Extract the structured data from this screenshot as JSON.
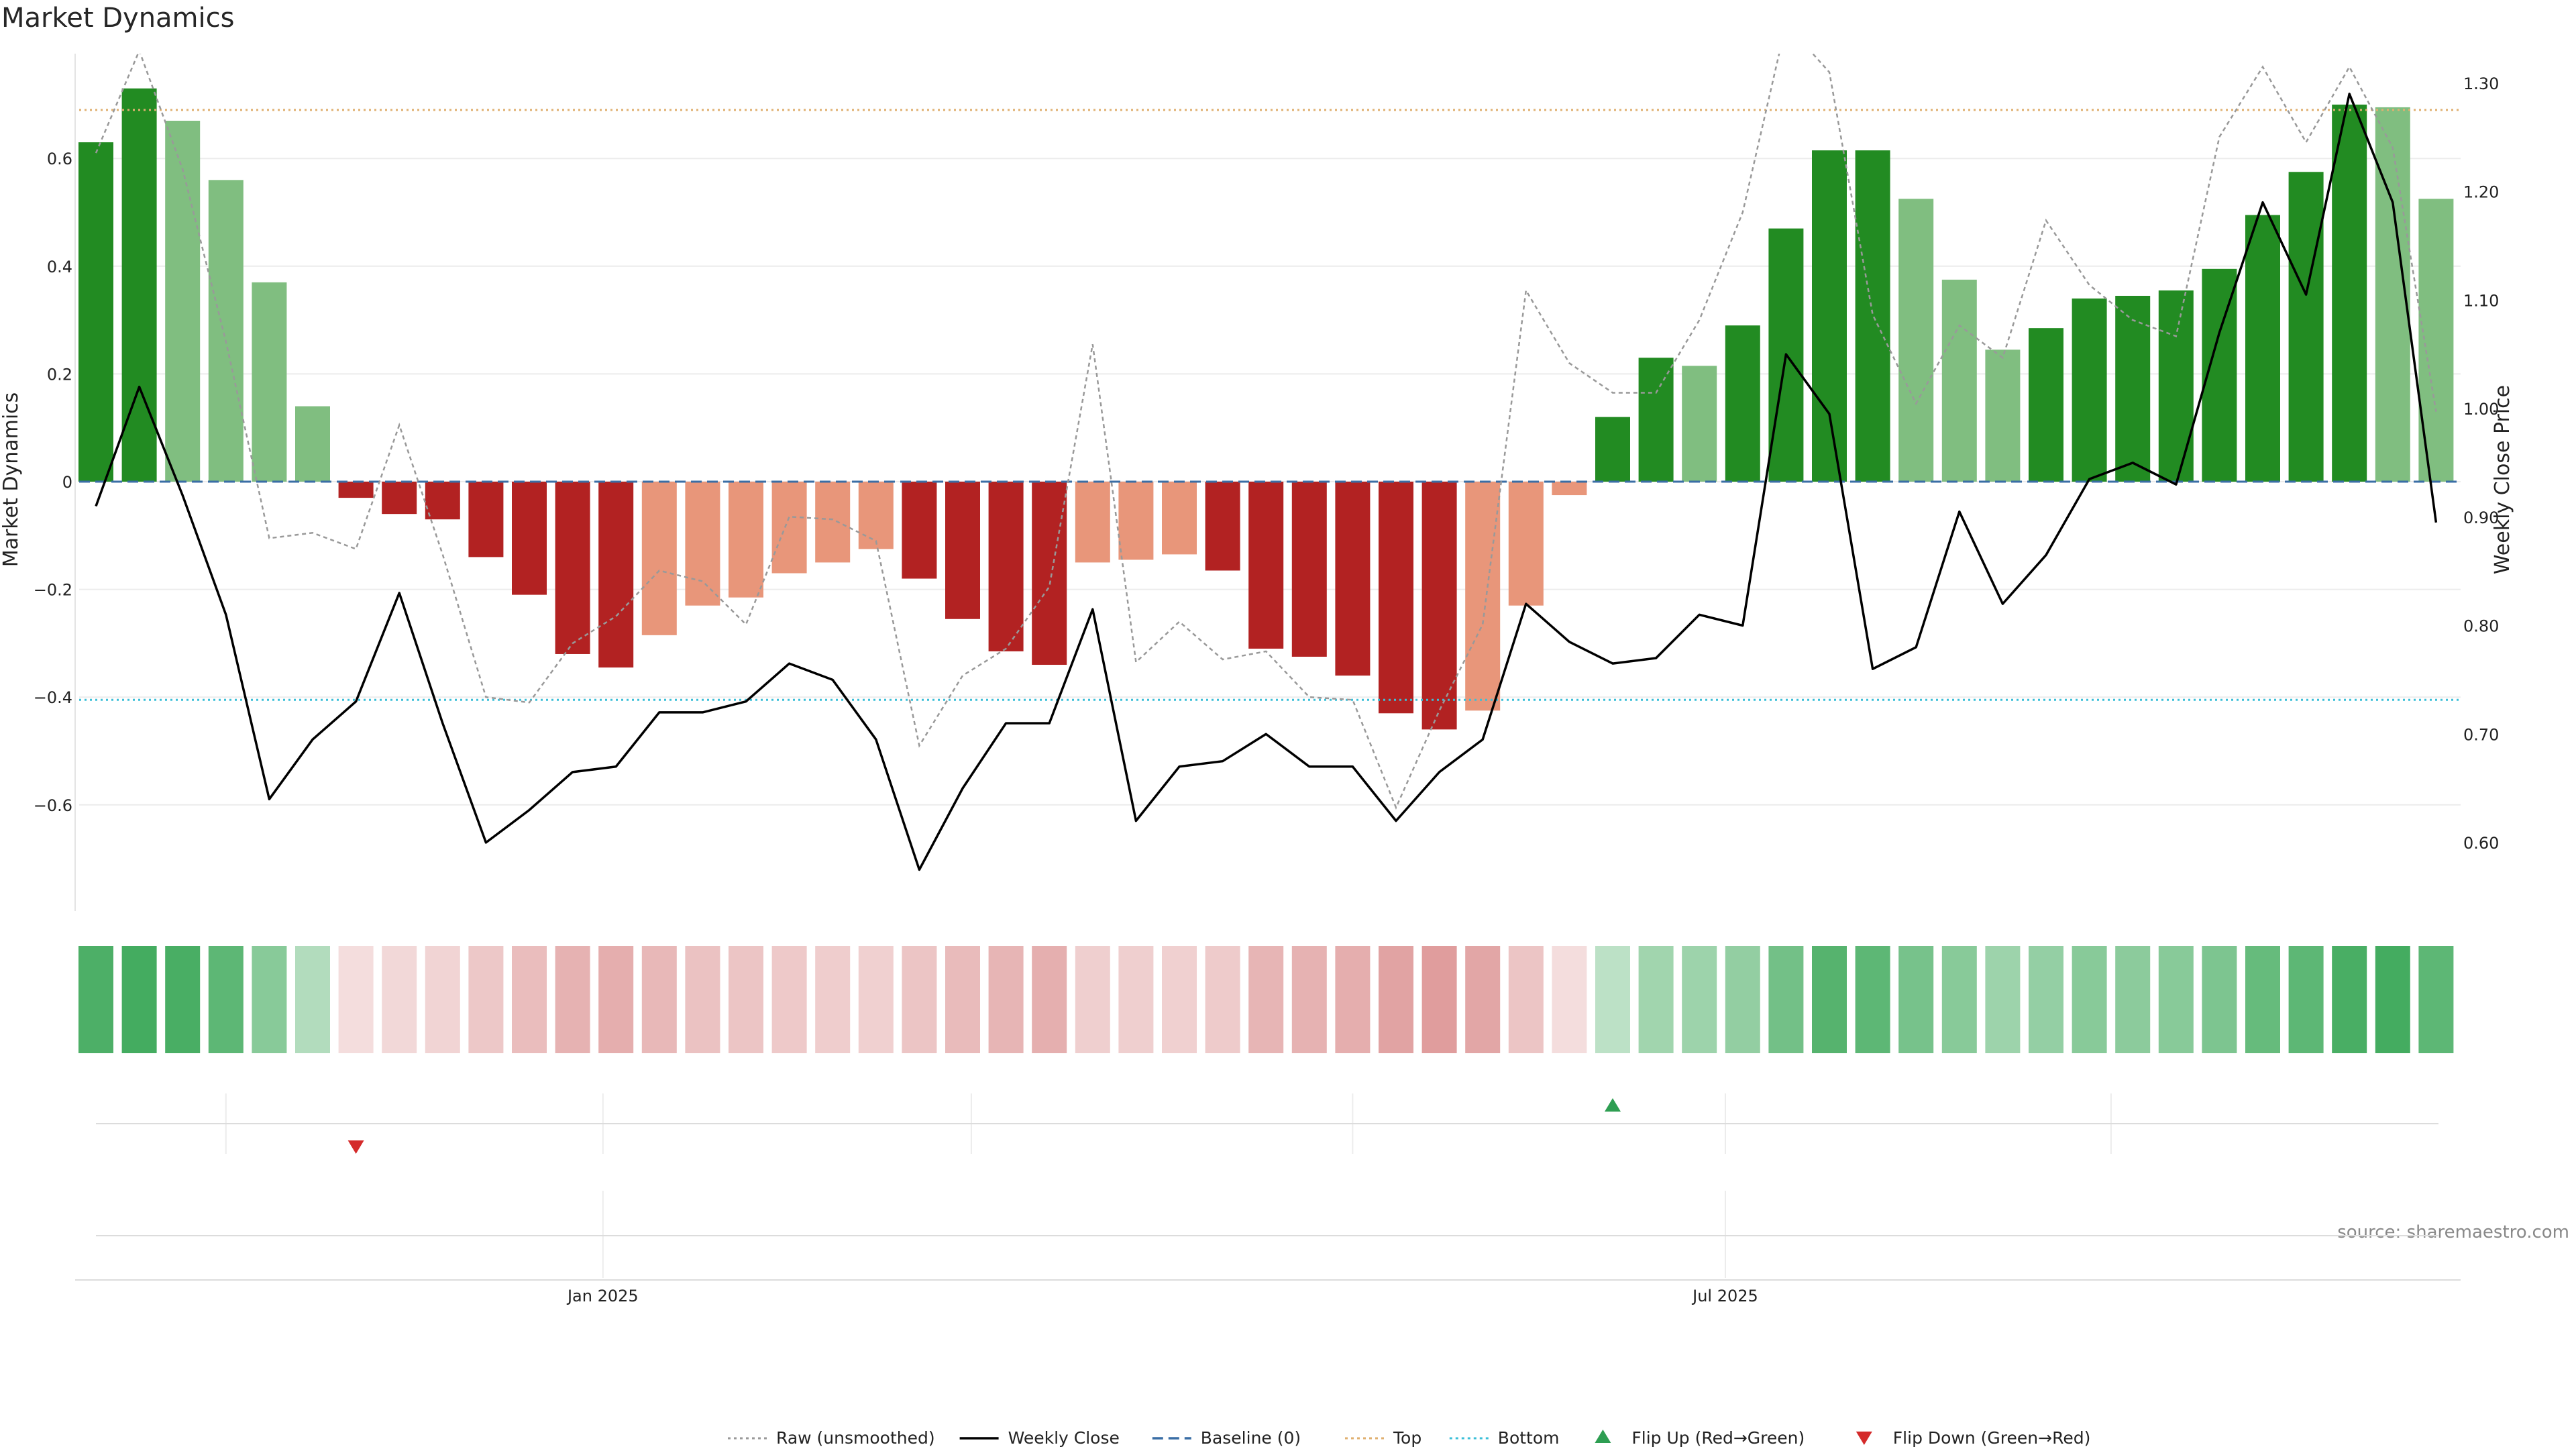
{
  "chart_data": {
    "type": "bar",
    "title": "Market Dynamics",
    "ylabel": "Market Dynamics",
    "y2label": "Weekly Close Price",
    "source": "source: sharemaestro.com",
    "ylim": [
      -0.8,
      0.8
    ],
    "y2lim": [
      0.53,
      1.34
    ],
    "yticks": [
      -0.6,
      -0.4,
      -0.2,
      0,
      0.2,
      0.4,
      0.6
    ],
    "ytick_labels": [
      "−0.6",
      "−0.4",
      "−0.2",
      "0",
      "0.2",
      "0.4",
      "0.6"
    ],
    "y2ticks": [
      0.6,
      0.7,
      0.8,
      0.9,
      1.0,
      1.1,
      1.2,
      1.3
    ],
    "y2tick_labels": [
      "0.60",
      "0.70",
      "0.80",
      "0.90",
      "1.00",
      "1.10",
      "1.20",
      "1.30"
    ],
    "xticks": [
      {
        "index": 11.7,
        "label": "Jan 2025"
      },
      {
        "index": 37.6,
        "label": "Jul 2025"
      }
    ],
    "grid_x_minor": [
      3,
      11.7,
      20.2,
      29,
      37.6,
      46.5
    ],
    "levels": {
      "baseline": 0,
      "top": 0.69,
      "bottom": -0.405
    },
    "series": [
      {
        "name": "Market Dynamics",
        "kind": "bar",
        "values": [
          0.63,
          0.73,
          0.67,
          0.56,
          0.37,
          0.14,
          -0.03,
          -0.06,
          -0.07,
          -0.14,
          -0.21,
          -0.32,
          -0.345,
          -0.285,
          -0.23,
          -0.215,
          -0.17,
          -0.15,
          -0.125,
          -0.18,
          -0.255,
          -0.315,
          -0.34,
          -0.15,
          -0.145,
          -0.135,
          -0.165,
          -0.31,
          -0.325,
          -0.36,
          -0.43,
          -0.46,
          -0.425,
          -0.23,
          -0.025,
          0.12,
          0.23,
          0.215,
          0.29,
          0.47,
          0.615,
          0.615,
          0.525,
          0.375,
          0.245,
          0.285,
          0.34,
          0.345,
          0.355,
          0.395,
          0.495,
          0.575,
          0.7,
          0.695,
          0.525
        ],
        "strength": [
          "strong",
          "strong",
          "weak",
          "weak",
          "weak",
          "weak",
          "strong",
          "strong",
          "strong",
          "strong",
          "strong",
          "strong",
          "strong",
          "weak",
          "weak",
          "weak",
          "weak",
          "weak",
          "weak",
          "strong",
          "strong",
          "strong",
          "strong",
          "weak",
          "weak",
          "weak",
          "strong",
          "strong",
          "strong",
          "strong",
          "strong",
          "strong",
          "weak",
          "weak",
          "weak",
          "strong",
          "strong",
          "weak",
          "strong",
          "strong",
          "strong",
          "strong",
          "weak",
          "weak",
          "weak",
          "strong",
          "strong",
          "strong",
          "strong",
          "strong",
          "strong",
          "strong",
          "strong",
          "weak",
          "weak"
        ]
      },
      {
        "name": "Raw (unsmoothed)",
        "kind": "line",
        "values": [
          0.61,
          0.8,
          0.58,
          0.26,
          -0.105,
          -0.095,
          -0.125,
          0.105,
          -0.135,
          -0.4,
          -0.41,
          -0.3,
          -0.25,
          -0.165,
          -0.185,
          -0.265,
          -0.065,
          -0.07,
          -0.11,
          -0.49,
          -0.36,
          -0.31,
          -0.195,
          0.255,
          -0.335,
          -0.26,
          -0.33,
          -0.315,
          -0.4,
          -0.405,
          -0.605,
          -0.425,
          -0.265,
          0.355,
          0.22,
          0.165,
          0.165,
          0.3,
          0.5,
          0.85,
          0.76,
          0.31,
          0.145,
          0.29,
          0.23,
          0.485,
          0.365,
          0.3,
          0.27,
          0.64,
          0.77,
          0.63,
          0.77,
          0.62,
          0.13
        ]
      },
      {
        "name": "Weekly Close",
        "kind": "line",
        "axis": "right",
        "values": [
          0.91,
          1.02,
          0.92,
          0.81,
          0.64,
          0.695,
          0.73,
          0.83,
          0.71,
          0.6,
          0.63,
          0.665,
          0.67,
          0.72,
          0.72,
          0.73,
          0.765,
          0.75,
          0.695,
          0.575,
          0.65,
          0.71,
          0.71,
          0.815,
          0.62,
          0.67,
          0.675,
          0.7,
          0.67,
          0.67,
          0.62,
          0.665,
          0.695,
          0.82,
          0.785,
          0.765,
          0.77,
          0.81,
          0.8,
          1.05,
          0.995,
          0.76,
          0.78,
          0.905,
          0.82,
          0.865,
          0.935,
          0.95,
          0.93,
          1.07,
          1.19,
          1.105,
          1.29,
          1.19,
          0.895
        ]
      }
    ],
    "heatmap": {
      "values": [
        0.68,
        0.72,
        0.7,
        0.6,
        0.4,
        0.2,
        -0.05,
        -0.08,
        -0.1,
        -0.18,
        -0.25,
        -0.32,
        -0.35,
        -0.28,
        -0.22,
        -0.2,
        -0.17,
        -0.15,
        -0.13,
        -0.2,
        -0.26,
        -0.3,
        -0.34,
        -0.14,
        -0.14,
        -0.13,
        -0.16,
        -0.3,
        -0.32,
        -0.35,
        -0.42,
        -0.45,
        -0.4,
        -0.2,
        -0.05,
        0.15,
        0.28,
        0.3,
        0.35,
        0.5,
        0.64,
        0.6,
        0.48,
        0.4,
        0.3,
        0.34,
        0.4,
        0.38,
        0.4,
        0.45,
        0.56,
        0.6,
        0.7,
        0.72,
        0.6
      ]
    },
    "flips": [
      {
        "index": 6,
        "direction": "down",
        "label": "Flip Down (Green→Red)"
      },
      {
        "index": 35,
        "direction": "up",
        "label": "Flip Up (Red→Green)"
      }
    ],
    "colors": {
      "strong_pos": "#228b22",
      "weak_pos": "#80be80",
      "strong_neg": "#b22222",
      "weak_neg": "#e8967a",
      "raw": "#999999",
      "close": "#000000",
      "baseline": "#3a6ea5",
      "top": "#e0b070",
      "bottom": "#3bbfd8",
      "flip_up": "#2e9e52",
      "flip_down": "#d42a2a",
      "heat_pos": "#38a655",
      "heat_neg": "#cf6a6a",
      "grid": "#ececec"
    },
    "legend": {
      "position": "bottom-center",
      "entries": [
        {
          "key": "raw",
          "label": "Raw (unsmoothed)",
          "style": "dotted-line"
        },
        {
          "key": "close",
          "label": "Weekly Close",
          "style": "line"
        },
        {
          "key": "baseline",
          "label": "Baseline (0)",
          "style": "dashed-line"
        },
        {
          "key": "top",
          "label": "Top",
          "style": "dotted-line"
        },
        {
          "key": "bottom",
          "label": "Bottom",
          "style": "dotted-line"
        },
        {
          "key": "flip_up",
          "label": "Flip Up (Red→Green)",
          "style": "triangle-up"
        },
        {
          "key": "flip_down",
          "label": "Flip Down (Green→Red)",
          "style": "triangle-down"
        }
      ]
    }
  }
}
